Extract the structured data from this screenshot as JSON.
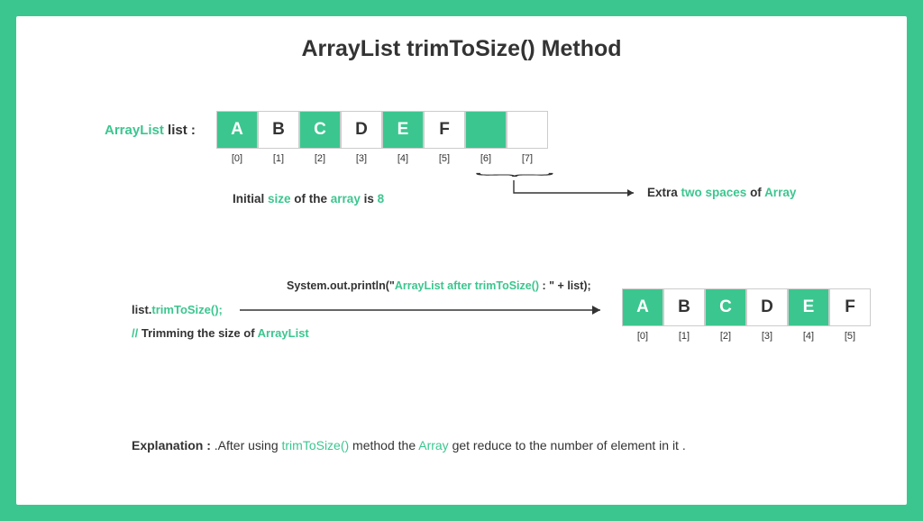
{
  "title": "ArrayList trimToSize() Method",
  "colors": {
    "accent": "#3cc68f",
    "border": "#cccccc",
    "text": "#333333",
    "bg": "#ffffff"
  },
  "first_array": {
    "label_prefix": "ArrayList",
    "label_suffix": "list :",
    "cells": [
      {
        "letter": "A",
        "bg": "green",
        "idx": "[0]"
      },
      {
        "letter": "B",
        "bg": "white",
        "idx": "[1]"
      },
      {
        "letter": "C",
        "bg": "green",
        "idx": "[2]"
      },
      {
        "letter": "D",
        "bg": "white",
        "idx": "[3]"
      },
      {
        "letter": "E",
        "bg": "green",
        "idx": "[4]"
      },
      {
        "letter": "F",
        "bg": "white",
        "idx": "[5]"
      },
      {
        "letter": "",
        "bg": "green",
        "idx": "[6]"
      },
      {
        "letter": "",
        "bg": "empty",
        "idx": "[7]"
      }
    ]
  },
  "size_text": {
    "p1": "Initial ",
    "p2": "size",
    "p3": " of the ",
    "p4": "array",
    "p5": " is ",
    "p6": "8"
  },
  "extra_text": {
    "p1": "Extra ",
    "p2": "two spaces",
    "p3": " of  ",
    "p4": "Array"
  },
  "trim_call": {
    "p1": "list.",
    "p2": "trimToSize();"
  },
  "trim_comment": {
    "p1": "// ",
    "p2": "Trimming the size of  ",
    "p3": "ArrayList"
  },
  "println_text": {
    "p1": "System.out.println(\"",
    "p2": "ArrayList after trimToSize()",
    "p3": " : \" + list);"
  },
  "second_array": {
    "cells": [
      {
        "letter": "A",
        "bg": "green",
        "idx": "[0]"
      },
      {
        "letter": "B",
        "bg": "white",
        "idx": "[1]"
      },
      {
        "letter": "C",
        "bg": "green",
        "idx": "[2]"
      },
      {
        "letter": "D",
        "bg": "white",
        "idx": "[3]"
      },
      {
        "letter": "E",
        "bg": "green",
        "idx": "[4]"
      },
      {
        "letter": "F",
        "bg": "white",
        "idx": "[5]"
      }
    ]
  },
  "explanation": {
    "label": "Explanation : ",
    "p1": ".After using ",
    "p2": "trimToSize()",
    "p3": " method the ",
    "p4": "Array",
    "p5": " get reduce to the number of element in it ."
  }
}
